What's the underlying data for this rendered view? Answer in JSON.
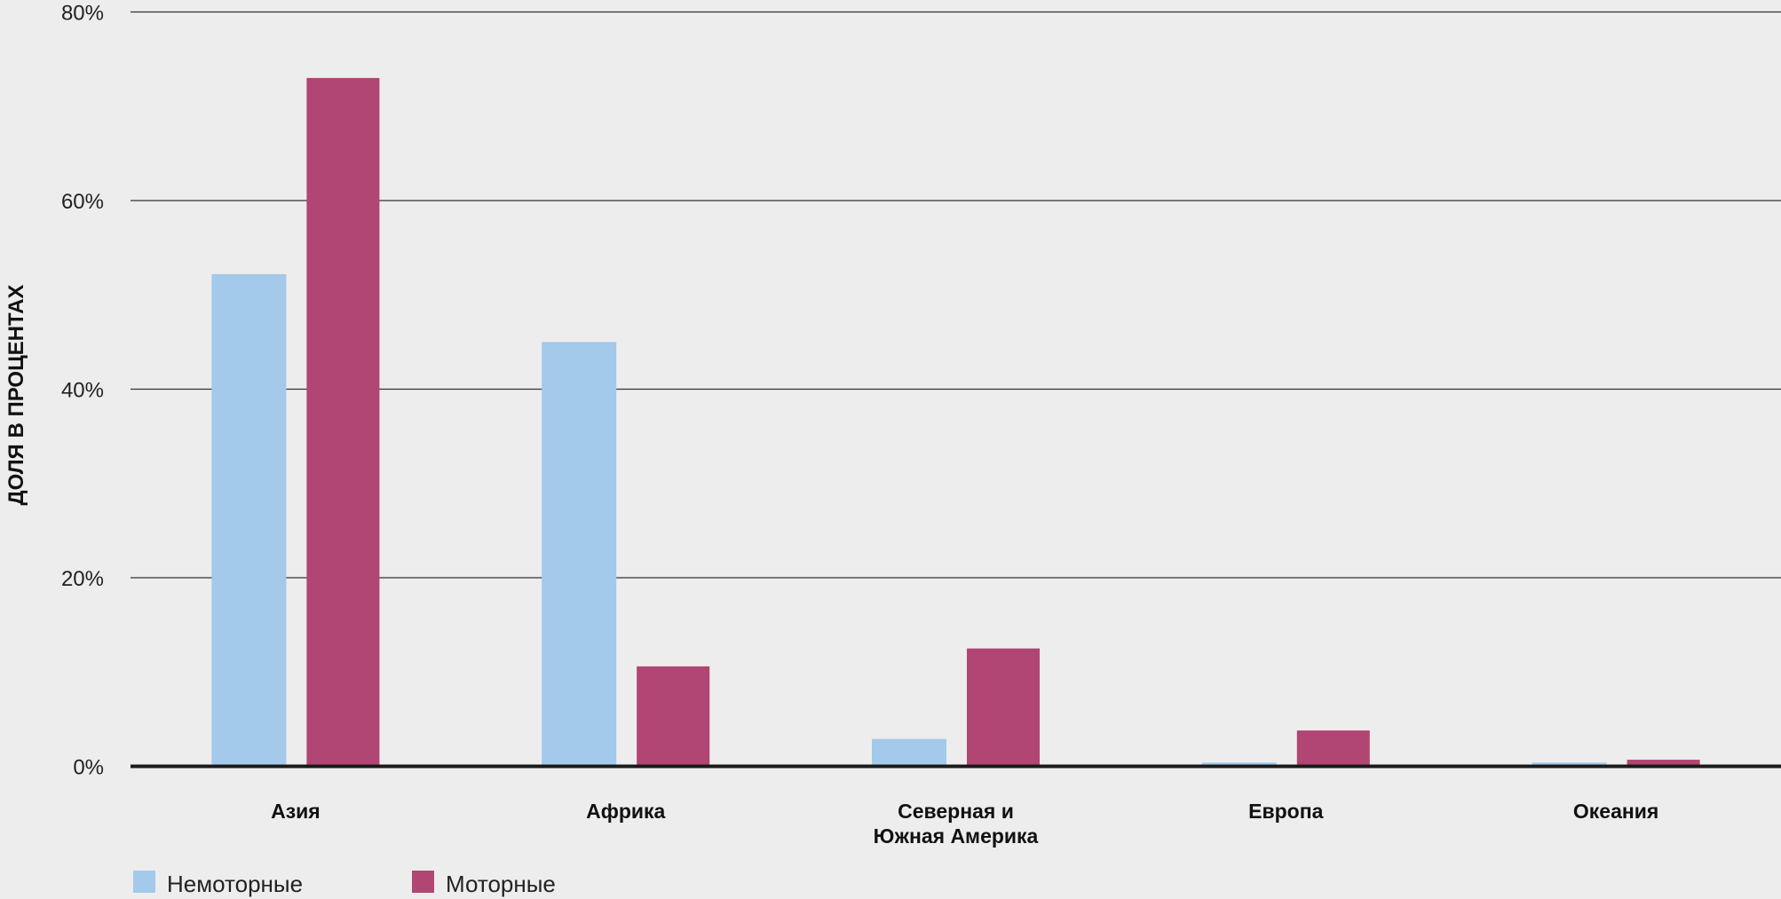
{
  "chart_data": {
    "type": "bar",
    "title": "",
    "xlabel": "",
    "ylabel": "ДОЛЯ В ПРОЦЕНТАХ",
    "ylim": [
      0,
      80
    ],
    "yticks": [
      0,
      20,
      40,
      60,
      80
    ],
    "ytick_labels": [
      "0%",
      "20%",
      "40%",
      "60%",
      "80%"
    ],
    "grid": "horizontal",
    "legend_position": "bottom-left",
    "categories": [
      [
        "Азия"
      ],
      [
        "Африка"
      ],
      [
        "Северная и",
        "Южная Америка"
      ],
      [
        "Европа"
      ],
      [
        "Океания"
      ]
    ],
    "series": [
      {
        "name": "Немоторные",
        "color": "#a3c9eb",
        "values": [
          52.2,
          45.0,
          2.9,
          0.4,
          0.4
        ]
      },
      {
        "name": "Моторные",
        "color": "#b14573",
        "values": [
          73.0,
          10.6,
          12.5,
          3.8,
          0.7
        ]
      }
    ]
  }
}
